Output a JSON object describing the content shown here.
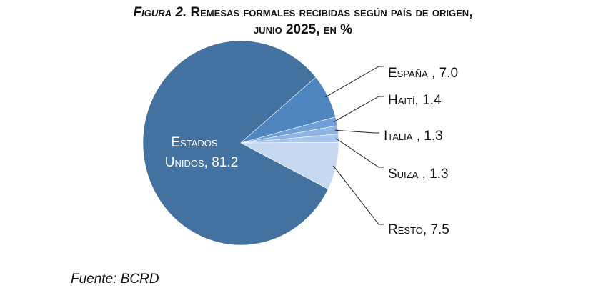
{
  "title": {
    "label": "Figura 2.",
    "line1": "Remesas formales recibidas según país de origen,",
    "line2": "junio 2025, en %"
  },
  "source": "Fuente: BCRD",
  "colors": {
    "estados_unidos": "#4472a0",
    "espana": "#4f86c0",
    "haiti": "#6f9fd6",
    "italia": "#8eb4e2",
    "suiza": "#a9c6ec",
    "resto": "#c7d8f1",
    "leader": "#222222"
  },
  "chart_data": {
    "type": "pie",
    "title": "Figura 2. Remesas formales recibidas según país de origen, junio 2025, en %",
    "slices": [
      {
        "name": "Estados Unidos",
        "value": 81.2,
        "label_lines": [
          "Estados",
          "Unidos, 81.2"
        ]
      },
      {
        "name": "España",
        "value": 7.0,
        "label_lines": [
          "España , 7.0"
        ]
      },
      {
        "name": "Haití",
        "value": 1.4,
        "label_lines": [
          "Haití, 1.4"
        ]
      },
      {
        "name": "Italia",
        "value": 1.3,
        "label_lines": [
          "Italia , 1.3"
        ]
      },
      {
        "name": "Suiza",
        "value": 1.3,
        "label_lines": [
          "Suiza , 1.3"
        ]
      },
      {
        "name": "Resto",
        "value": 7.5,
        "label_lines": [
          "Resto, 7.5"
        ]
      }
    ]
  }
}
